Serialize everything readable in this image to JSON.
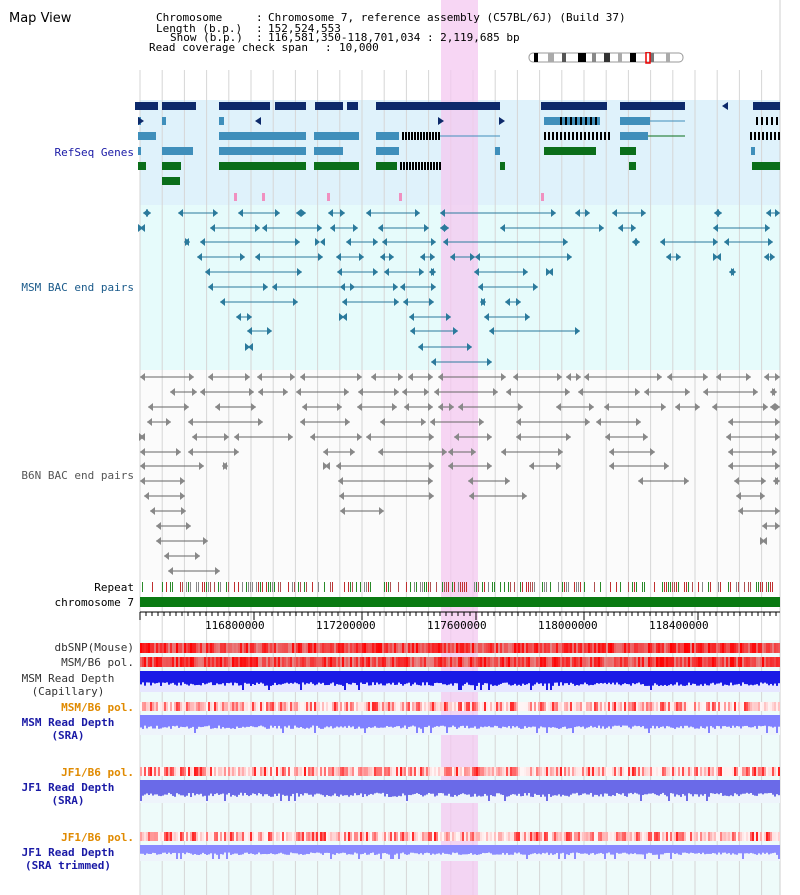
{
  "title": "Map View",
  "info": {
    "chromosome_key": "Chromosome",
    "chromosome_val": "Chromosome 7, reference assembly (C57BL/6J) (Build 37)",
    "length_key": "Length (b.p.)",
    "length_val": "152,524,553",
    "show_key": "Show (b.p.)",
    "show_val": "116,581,350-118,701,034 : 2,119,685 bp",
    "coverage_key": "Read coverage check span",
    "coverage_val": "10,000"
  },
  "tracks": {
    "refseq": "RefSeq Genes",
    "msm_bac": "MSM BAC end pairs",
    "b6n_bac": "B6N BAC end pairs",
    "repeat": "Repeat",
    "chromosome": "chromosome 7",
    "dbsnp": "dbSNP(Mouse)",
    "msm_pol": "MSM/B6 pol.",
    "msm_depth_cap_1": "MSM Read Depth",
    "msm_depth_cap_2": "(Capillary)",
    "msm_pol2": "MSM/B6 pol.",
    "msm_depth_sra_1": "MSM Read Depth",
    "msm_depth_sra_2": "(SRA)",
    "jf1_pol": "JF1/B6 pol.",
    "jf1_depth_sra_1": "JF1 Read Depth",
    "jf1_depth_sra_2": "(SRA)",
    "jf1_pol2": "JF1/B6 pol.",
    "jf1_depth_trim_1": "JF1 Read Depth",
    "jf1_depth_trim_2": "(SRA trimmed)"
  },
  "axis": {
    "ticks": [
      "116800000",
      "117200000",
      "117600000",
      "118000000",
      "118400000"
    ]
  },
  "colors": {
    "refseq_label": "#1a1aa6",
    "msm_bac_label": "#1a5a8a",
    "b6n_bac_label": "#555555",
    "orange_label": "#e08a00",
    "blue_label": "#1a1aa6",
    "highlight": "#f4c8f0"
  }
}
